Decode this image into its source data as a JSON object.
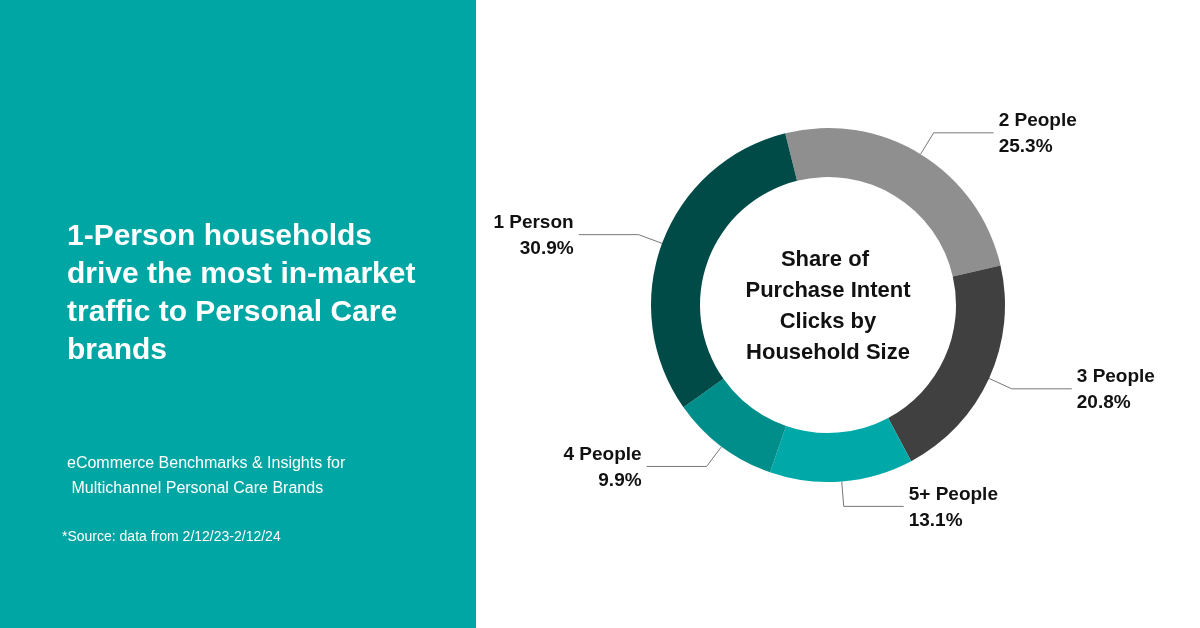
{
  "chart_data": {
    "type": "donut",
    "title": "1-Person households drive the most in-market traffic to Personal Care brands",
    "subtitle": "eCommerce Benchmarks & Insights for Multichannel Personal Care Brands",
    "categories": [
      "2 People",
      "3 People",
      "5+ People",
      "4 People",
      "1 Person"
    ],
    "values": [
      25.3,
      20.8,
      13.1,
      9.9,
      30.9
    ],
    "colors": [
      "#8f8f8f",
      "#404040",
      "#00a8a8",
      "#008e8a",
      "#004a48"
    ],
    "value_labels": [
      "25.3%",
      "20.8%",
      "13.1%",
      "9.9%",
      "30.9%"
    ],
    "legend": false,
    "annotations": [
      "Share of Purchase Intent Clicks by Household Size",
      "*Source: data from 2/12/23-2/12/24"
    ]
  }
}
